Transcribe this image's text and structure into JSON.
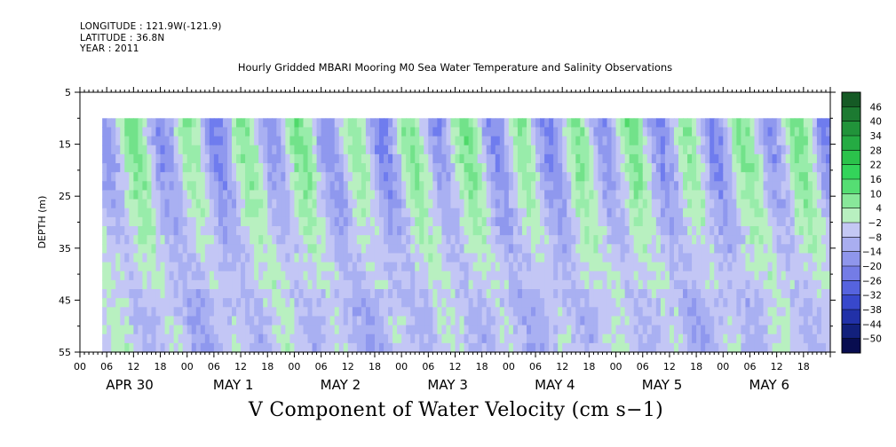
{
  "header": {
    "longitude": "LONGITUDE : 121.9W(-121.9)",
    "latitude": "LATITUDE : 36.8N",
    "year": "YEAR : 2011"
  },
  "chart_data": {
    "type": "heatmap",
    "title": "Hourly Gridded MBARI Mooring M0 Sea Water Temperature and Salinity Observations",
    "bottom_title": "V Component of Water Velocity (cm s−1)",
    "ylabel": "DEPTH (m)",
    "ylim": [
      5,
      55
    ],
    "y_inverted": true,
    "y_ticks": [
      5,
      15,
      25,
      35,
      45,
      55
    ],
    "hour_labels": [
      "00",
      "06",
      "12",
      "18"
    ],
    "date_labels": [
      "APR 30",
      "MAY  1",
      "MAY  2",
      "MAY  3",
      "MAY  4",
      "MAY  5",
      "MAY  6"
    ],
    "data_start": "APR 30 05:00",
    "data_end": "MAY 6 23:00",
    "data_top_depth": 10,
    "colorbar": {
      "levels": [
        46,
        40,
        34,
        28,
        22,
        16,
        10,
        4,
        -2,
        -8,
        -14,
        -20,
        -26,
        -32,
        -38,
        -44,
        -50
      ],
      "colors": [
        "#155a25",
        "#1c7a31",
        "#21933a",
        "#25ab43",
        "#2bc24b",
        "#33d45a",
        "#55de73",
        "#88e89a",
        "#b8f0c0",
        "#c4c8f4",
        "#a9aef0",
        "#8f96ec",
        "#747ce6",
        "#5663de",
        "#3848cc",
        "#2131a8",
        "#12207c",
        "#080d50"
      ]
    },
    "note": "Colour field: hourly V velocity on depth grid; values mostly between -14 and +22"
  }
}
